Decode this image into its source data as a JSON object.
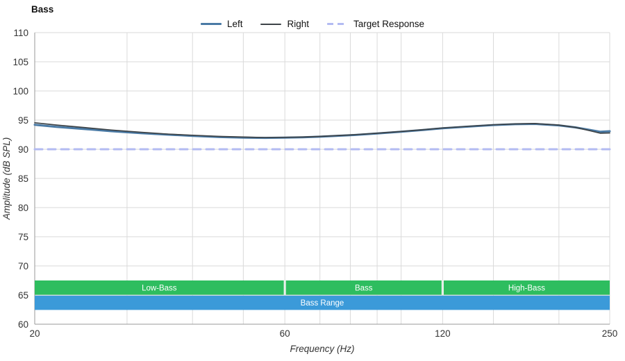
{
  "title": "Bass",
  "legend": {
    "items": [
      {
        "label": "Left",
        "color": "#4a7aa5",
        "style": "thick"
      },
      {
        "label": "Right",
        "color": "#3d4347",
        "style": "thin"
      },
      {
        "label": "Target Response",
        "color": "#b3bbf2",
        "style": "dashed"
      }
    ]
  },
  "chart_data": {
    "type": "line",
    "title": "Bass",
    "xlabel": "Frequency (Hz)",
    "ylabel": "Amplitude (dB SPL)",
    "x_scale": "log",
    "xlim": [
      20,
      250
    ],
    "ylim": [
      60,
      110
    ],
    "x_ticks": [
      20,
      60,
      120,
      250
    ],
    "y_ticks": [
      60,
      65,
      70,
      75,
      80,
      85,
      90,
      95,
      100,
      105,
      110
    ],
    "x_gridlines": [
      30,
      40,
      50,
      60,
      70,
      80,
      90,
      100,
      120,
      150,
      200
    ],
    "y_gridlines": [
      65,
      70,
      75,
      80,
      85,
      90,
      95,
      100,
      105
    ],
    "grid": true,
    "legend_position": "top-center",
    "colors": {
      "grid": "#dadada",
      "axis": "#999999",
      "text": "#333333",
      "band_text": "#ffffff"
    },
    "series": [
      {
        "name": "Left",
        "color": "#4a7aa5",
        "width": 3,
        "dash": "",
        "x": [
          20,
          22,
          25,
          28,
          32,
          36,
          40,
          45,
          50,
          55,
          60,
          65,
          70,
          80,
          90,
          100,
          110,
          120,
          135,
          150,
          165,
          180,
          200,
          215,
          230,
          240,
          250
        ],
        "y": [
          94.2,
          93.85,
          93.45,
          93.1,
          92.75,
          92.5,
          92.3,
          92.1,
          92.0,
          91.95,
          92.0,
          92.05,
          92.15,
          92.4,
          92.7,
          93.0,
          93.3,
          93.6,
          93.9,
          94.15,
          94.3,
          94.35,
          94.1,
          93.75,
          93.3,
          93.0,
          93.1
        ]
      },
      {
        "name": "Right",
        "color": "#3d4347",
        "width": 1.7,
        "dash": "",
        "x": [
          20,
          22,
          25,
          28,
          32,
          36,
          40,
          45,
          50,
          55,
          60,
          65,
          70,
          80,
          90,
          100,
          110,
          120,
          135,
          150,
          165,
          180,
          200,
          215,
          230,
          240,
          250
        ],
        "y": [
          94.55,
          94.15,
          93.7,
          93.3,
          92.9,
          92.6,
          92.4,
          92.2,
          92.1,
          92.0,
          92.05,
          92.1,
          92.2,
          92.45,
          92.75,
          93.05,
          93.35,
          93.65,
          93.95,
          94.2,
          94.35,
          94.4,
          94.15,
          93.75,
          93.15,
          92.75,
          92.8
        ]
      },
      {
        "name": "Target Response",
        "color": "#b3bbf2",
        "width": 3,
        "dash": "11 8",
        "x": [
          20,
          250
        ],
        "y": [
          90,
          90
        ]
      }
    ],
    "bands": [
      {
        "label": "Low-Bass",
        "x0": 20,
        "x1": 60,
        "y0": 65.05,
        "y1": 67.5,
        "color": "#2ebd5f"
      },
      {
        "label": "Bass",
        "x0": 60,
        "x1": 120,
        "y0": 65.05,
        "y1": 67.5,
        "color": "#2ebd5f"
      },
      {
        "label": "High-Bass",
        "x0": 120,
        "x1": 250,
        "y0": 65.05,
        "y1": 67.5,
        "color": "#2ebd5f"
      },
      {
        "label": "Bass Range",
        "x0": 20,
        "x1": 250,
        "y0": 62.45,
        "y1": 64.9,
        "color": "#3b9ad9"
      }
    ]
  }
}
